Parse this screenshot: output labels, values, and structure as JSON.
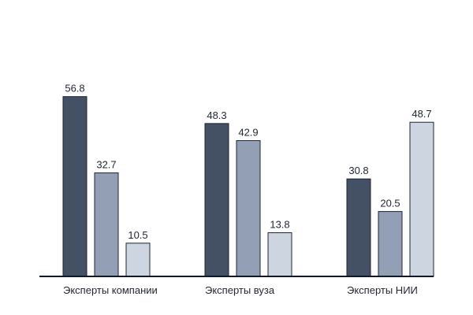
{
  "chart_data": {
    "type": "bar",
    "title": "",
    "xlabel": "",
    "ylabel": "",
    "categories": [
      "Эксперты компании",
      "Эксперты вуза",
      "Эксперты НИИ"
    ],
    "series": [
      {
        "values": [
          56.8,
          48.3,
          30.8
        ],
        "color": "#445064"
      },
      {
        "values": [
          32.7,
          42.9,
          20.5
        ],
        "color": "#929fb5"
      },
      {
        "values": [
          10.5,
          13.8,
          48.7
        ],
        "color": "#cdd5e1"
      }
    ],
    "ylim": [
      0,
      70
    ],
    "grid": false,
    "legend": "none",
    "data_labels": true
  }
}
